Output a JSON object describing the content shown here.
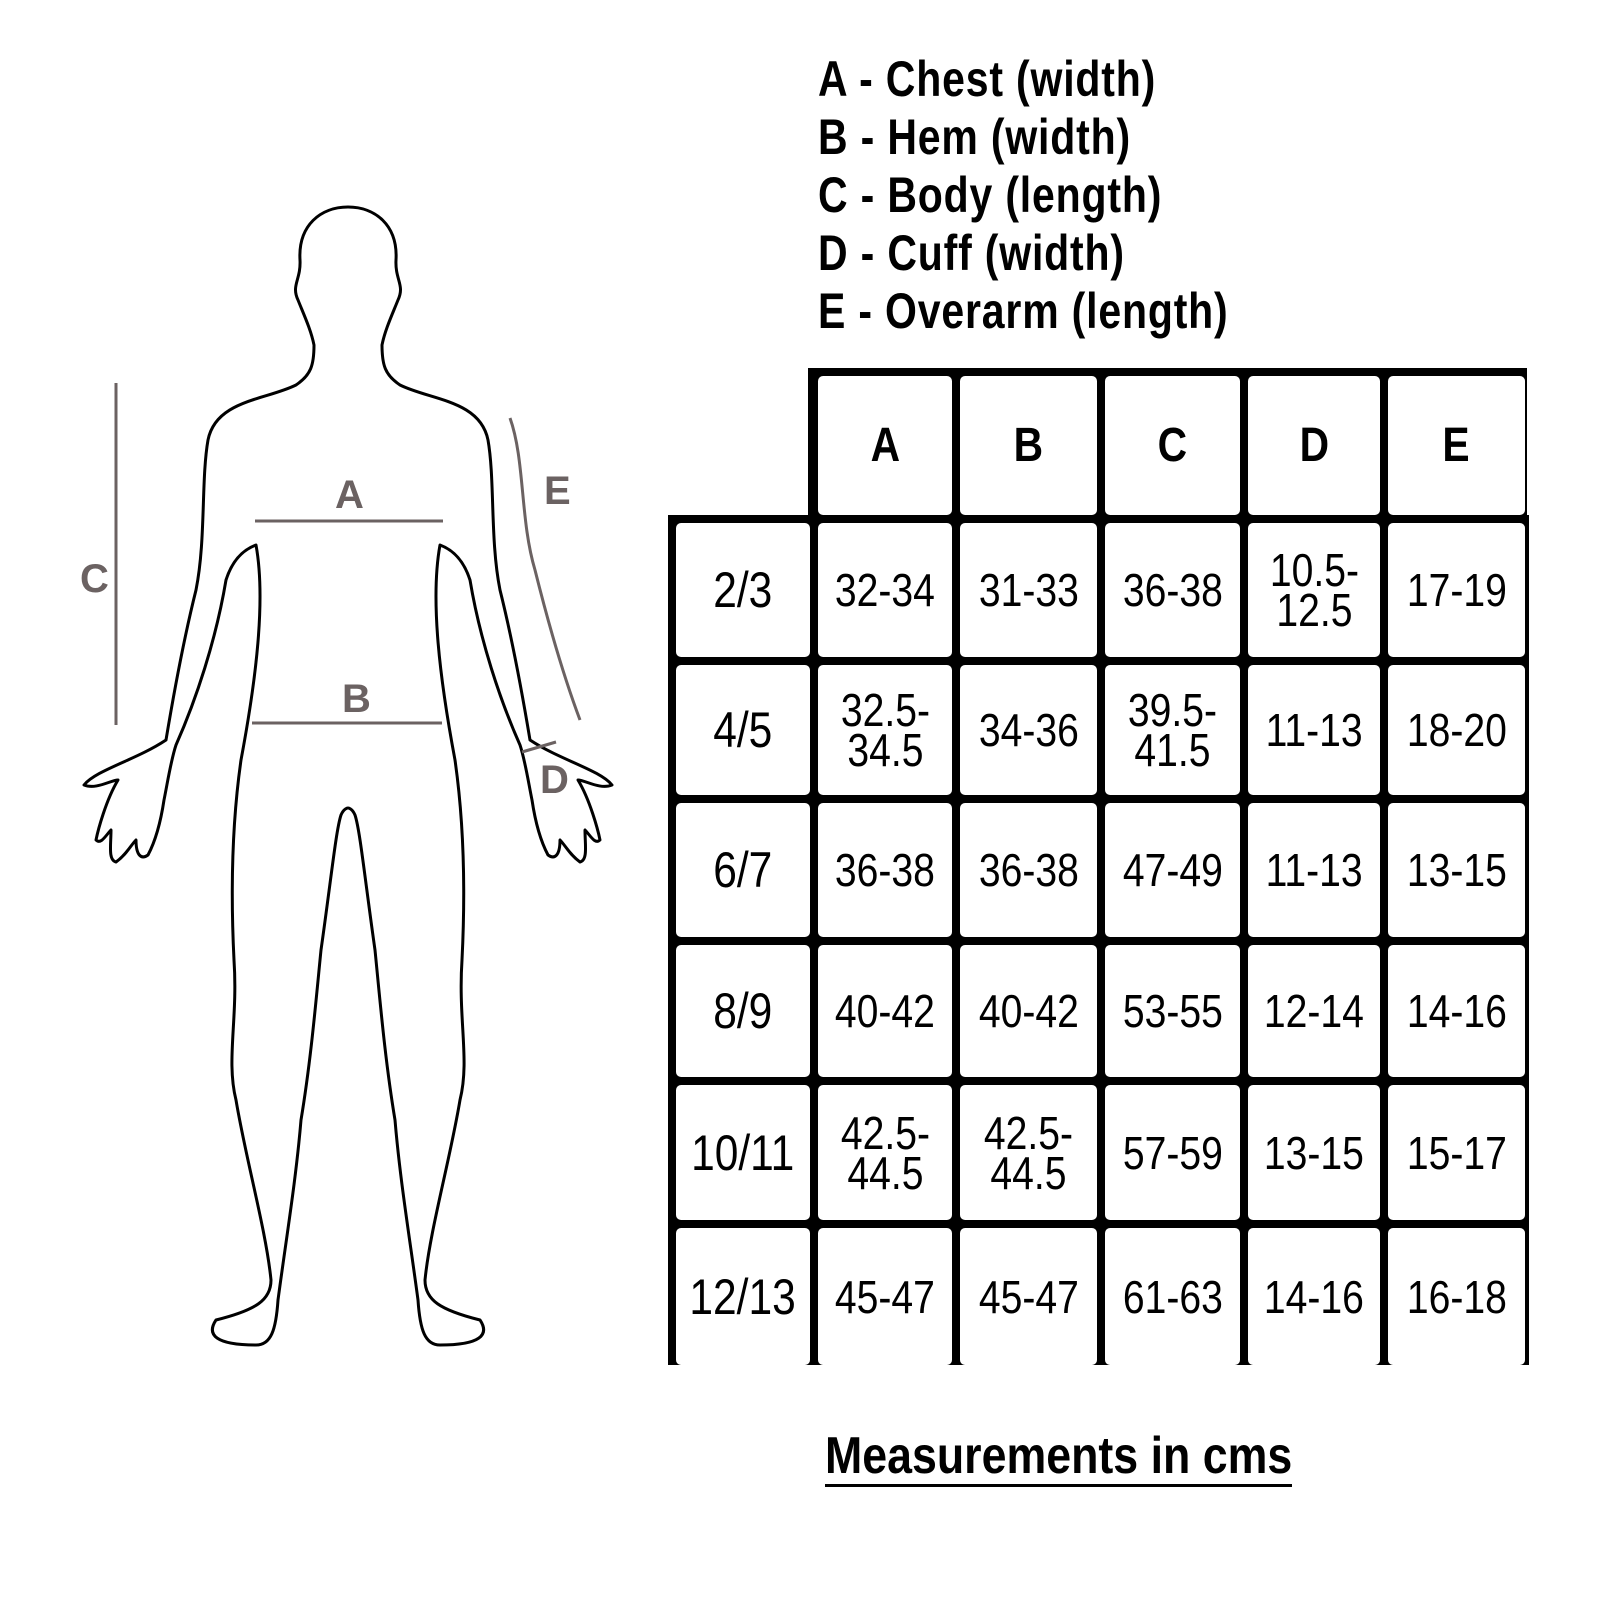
{
  "legend": [
    "A - Chest (width)",
    "B - Hem (width)",
    "C - Body (length)",
    "D - Cuff (width)",
    "E - Overarm (length)"
  ],
  "figure": {
    "labels": {
      "A": "A",
      "B": "B",
      "C": "C",
      "D": "D",
      "E": "E"
    },
    "line_color": "#6b6262"
  },
  "table": {
    "columns": [
      "A",
      "B",
      "C",
      "D",
      "E"
    ],
    "rows": [
      {
        "size": "2/3",
        "values": [
          "32-34",
          "31-33",
          "36-38",
          "10.5-\n12.5",
          "17-19"
        ]
      },
      {
        "size": "4/5",
        "values": [
          "32.5-\n34.5",
          "34-36",
          "39.5-\n41.5",
          "11-13",
          "18-20"
        ]
      },
      {
        "size": "6/7",
        "values": [
          "36-38",
          "36-38",
          "47-49",
          "11-13",
          "13-15"
        ]
      },
      {
        "size": "8/9",
        "values": [
          "40-42",
          "40-42",
          "53-55",
          "12-14",
          "14-16"
        ]
      },
      {
        "size": "10/11",
        "values": [
          "42.5-\n44.5",
          "42.5-\n44.5",
          "57-59",
          "13-15",
          "15-17"
        ]
      },
      {
        "size": "12/13",
        "values": [
          "45-47",
          "45-47",
          "61-63",
          "14-16",
          "16-18"
        ]
      }
    ]
  },
  "footer": "Measurements in cms"
}
